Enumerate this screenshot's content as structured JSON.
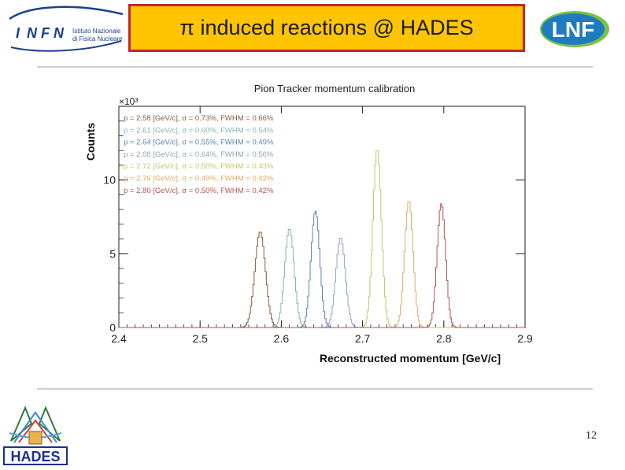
{
  "header": {
    "title": "π induced reactions @ HADES",
    "infn_logo": {
      "letters": [
        "I",
        "N",
        "F",
        "N"
      ],
      "line1": "Istituto Nazionale",
      "line2": "di Fisica Nucleare",
      "color": "#1c3f8f",
      "icon": "infn-logo-icon"
    },
    "lnf_logo": {
      "text": "LNF",
      "color": "#1f7bc0",
      "accent": "#7bc143",
      "icon": "lnf-logo-icon"
    }
  },
  "footer": {
    "page_number": "12",
    "hades_logo": {
      "text": "HADES",
      "color": "#1c2f8f",
      "icon": "hades-logo-icon"
    }
  },
  "chart_data": {
    "type": "line",
    "title": "Pion Tracker momentum calibration",
    "xlabel": "Reconstructed momentum [GeV/c]",
    "ylabel": "Counts",
    "y_multiplier": "×10³",
    "xlim": [
      2.4,
      2.9
    ],
    "ylim": [
      0,
      15
    ],
    "xticks": [
      2.4,
      2.5,
      2.6,
      2.7,
      2.8,
      2.9
    ],
    "yticks": [
      0,
      5,
      10
    ],
    "grid": false,
    "legend_position": "top-left",
    "series": [
      {
        "name": "p = 2.58 [GeV/c], σ = 0.73%, FWHM = 0.66%",
        "color": "#8b5a3c",
        "mean": 2.574,
        "sigma": 0.0065,
        "peak": 6.5
      },
      {
        "name": "p = 2.61 [GeV/c], σ = 0.60%, FWHM = 0.54%",
        "color": "#7fb7b0",
        "mean": 2.61,
        "sigma": 0.0058,
        "peak": 6.7
      },
      {
        "name": "p = 2.64 [GeV/c], σ = 0.55%, FWHM = 0.49%",
        "color": "#5c83b3",
        "mean": 2.642,
        "sigma": 0.0054,
        "peak": 7.9
      },
      {
        "name": "p = 2.68 [GeV/c], σ = 0.64%, FWHM = 0.56%",
        "color": "#8ea4be",
        "mean": 2.673,
        "sigma": 0.0058,
        "peak": 6.1
      },
      {
        "name": "p = 2.72 [GeV/c], σ = 0.50%, FWHM = 0.43%",
        "color": "#c8c46a",
        "mean": 2.718,
        "sigma": 0.0052,
        "peak": 12.1
      },
      {
        "name": "p = 2.76 [GeV/c], σ = 0.49%, FWHM = 0.42%",
        "color": "#d8ad65",
        "mean": 2.757,
        "sigma": 0.0052,
        "peak": 8.6
      },
      {
        "name": "p = 2.80 [GeV/c], σ = 0.50%, FWHM = 0.42%",
        "color": "#b5524d",
        "mean": 2.797,
        "sigma": 0.0052,
        "peak": 8.4
      }
    ]
  }
}
